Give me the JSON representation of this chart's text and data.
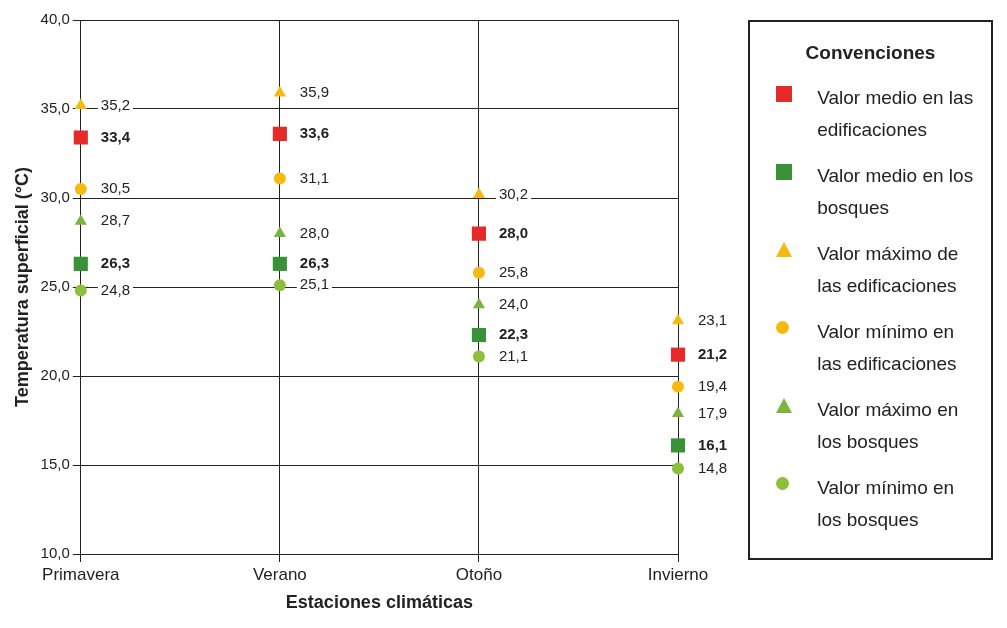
{
  "chart_data": {
    "type": "scatter",
    "xlabel": "Estaciones climáticas",
    "ylabel": "Temperatura superficial (°C)",
    "legend_title": "Convenciones",
    "categories": [
      "Primavera",
      "Verano",
      "Otoño",
      "Invierno"
    ],
    "ylim": [
      10,
      40
    ],
    "yticks": [
      {
        "value": 10,
        "label": "10,0"
      },
      {
        "value": 15,
        "label": "15,0"
      },
      {
        "value": 20,
        "label": "20,0"
      },
      {
        "value": 25,
        "label": "25,0"
      },
      {
        "value": 30,
        "label": "30,0"
      },
      {
        "value": 35,
        "label": "35,0"
      },
      {
        "value": 40,
        "label": "40,0"
      }
    ],
    "grid": true,
    "legend": "right",
    "series": [
      {
        "name": "Valor medio en las edificaciones",
        "color": "#e52a2a",
        "marker": "square",
        "values": [
          33.4,
          33.6,
          28.0,
          21.2
        ],
        "value_labels": [
          "33,4",
          "33,6",
          "28,0",
          "21,2"
        ]
      },
      {
        "name": "Valor medio en los bosques",
        "color": "#3a9238",
        "marker": "square",
        "values": [
          26.3,
          26.3,
          22.3,
          16.1
        ],
        "value_labels": [
          "26,3",
          "26,3",
          "22,3",
          "16,1"
        ]
      },
      {
        "name": "Valor máximo de las edificaciones",
        "color": "#f6b90f",
        "marker": "triangle",
        "values": [
          35.2,
          35.9,
          30.2,
          23.1
        ],
        "value_labels": [
          "35,2",
          "35,9",
          "30,2",
          "23,1"
        ]
      },
      {
        "name": "Valor mínimo en las edificaciones",
        "color": "#f6b90f",
        "marker": "circle",
        "values": [
          30.5,
          31.1,
          25.8,
          19.4
        ],
        "value_labels": [
          "30,5",
          "31,1",
          "25,8",
          "19,4"
        ]
      },
      {
        "name": "Valor máximo en los bosques",
        "color": "#7bb540",
        "marker": "triangle",
        "values": [
          28.7,
          28.0,
          24.0,
          17.9
        ],
        "value_labels": [
          "28,7",
          "28,0",
          "24,0",
          "17,9"
        ]
      },
      {
        "name": "Valor mínimo en los bosques",
        "color": "#8dbf3a",
        "marker": "circle",
        "values": [
          24.8,
          25.1,
          21.1,
          14.8
        ],
        "value_labels": [
          "24,8",
          "25,1",
          "21,1",
          "14,8"
        ]
      }
    ]
  }
}
